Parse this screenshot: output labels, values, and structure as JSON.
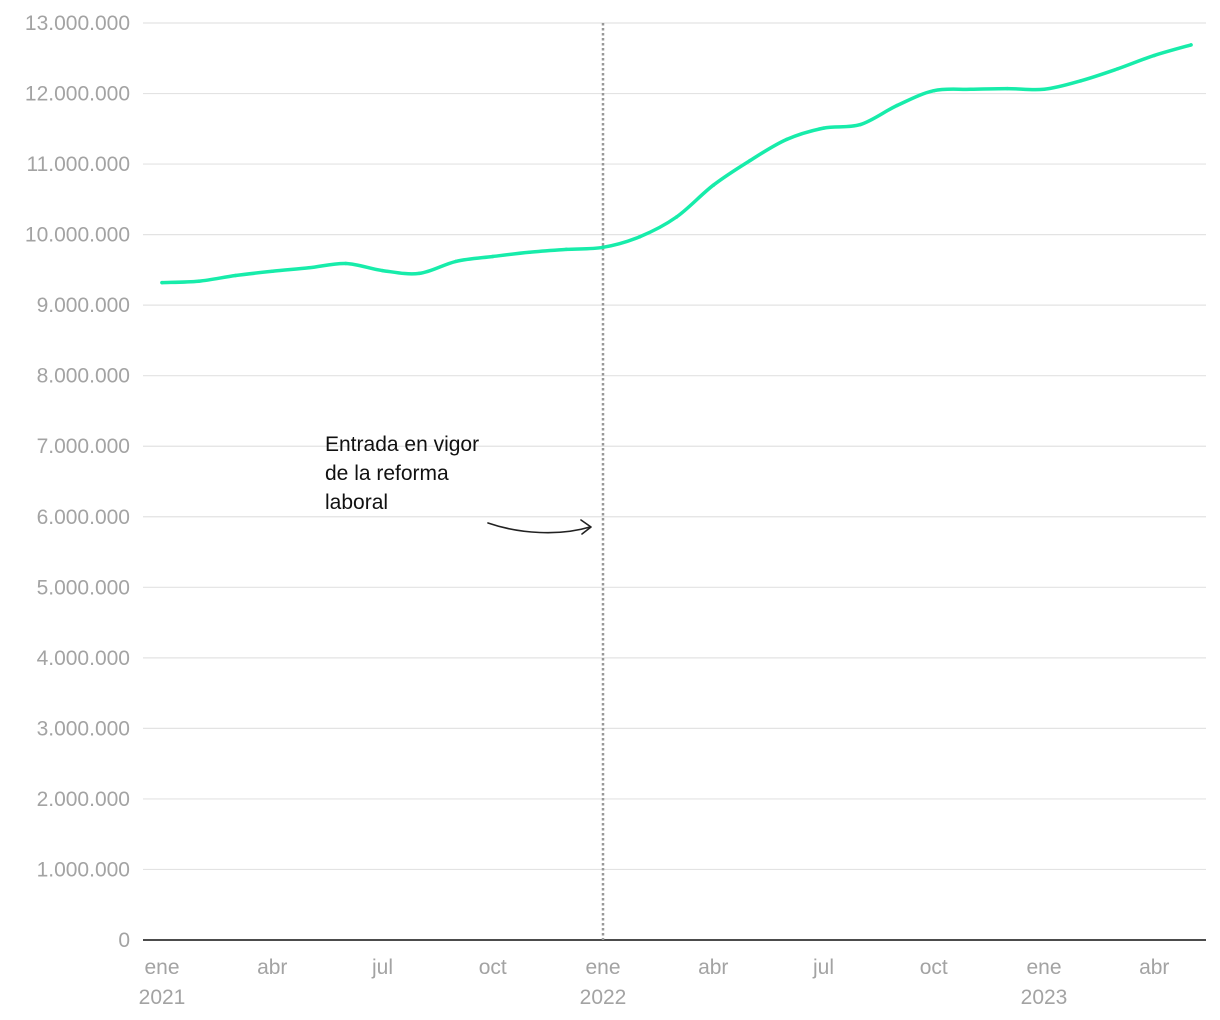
{
  "chart_data": {
    "type": "line",
    "title": "",
    "xlabel": "",
    "ylabel": "",
    "ylim": [
      0,
      13000000
    ],
    "y_ticks": [
      {
        "value": 0,
        "label": "0"
      },
      {
        "value": 1000000,
        "label": "1.000.000"
      },
      {
        "value": 2000000,
        "label": "2.000.000"
      },
      {
        "value": 3000000,
        "label": "3.000.000"
      },
      {
        "value": 4000000,
        "label": "4.000.000"
      },
      {
        "value": 5000000,
        "label": "5.000.000"
      },
      {
        "value": 6000000,
        "label": "6.000.000"
      },
      {
        "value": 7000000,
        "label": "7.000.000"
      },
      {
        "value": 8000000,
        "label": "8.000.000"
      },
      {
        "value": 9000000,
        "label": "9.000.000"
      },
      {
        "value": 10000000,
        "label": "10.000.000"
      },
      {
        "value": 11000000,
        "label": "11.000.000"
      },
      {
        "value": 12000000,
        "label": "12.000.000"
      },
      {
        "value": 13000000,
        "label": "13.000.000"
      }
    ],
    "x_ticks": [
      {
        "date": "2021-01",
        "month": "ene",
        "year": "2021"
      },
      {
        "date": "2021-04",
        "month": "abr",
        "year": ""
      },
      {
        "date": "2021-07",
        "month": "jul",
        "year": ""
      },
      {
        "date": "2021-10",
        "month": "oct",
        "year": ""
      },
      {
        "date": "2022-01",
        "month": "ene",
        "year": "2022"
      },
      {
        "date": "2022-04",
        "month": "abr",
        "year": ""
      },
      {
        "date": "2022-07",
        "month": "jul",
        "year": ""
      },
      {
        "date": "2022-10",
        "month": "oct",
        "year": ""
      },
      {
        "date": "2023-01",
        "month": "ene",
        "year": "2023"
      },
      {
        "date": "2023-04",
        "month": "abr",
        "year": ""
      }
    ],
    "x_range": [
      "2021-01",
      "2023-05"
    ],
    "grid": true,
    "series": [
      {
        "color": "#17ecaa",
        "points": [
          {
            "x": "2021-01",
            "y": 9320000
          },
          {
            "x": "2021-02",
            "y": 9340000
          },
          {
            "x": "2021-03",
            "y": 9420000
          },
          {
            "x": "2021-04",
            "y": 9480000
          },
          {
            "x": "2021-05",
            "y": 9530000
          },
          {
            "x": "2021-06",
            "y": 9590000
          },
          {
            "x": "2021-07",
            "y": 9490000
          },
          {
            "x": "2021-08",
            "y": 9450000
          },
          {
            "x": "2021-09",
            "y": 9620000
          },
          {
            "x": "2021-10",
            "y": 9690000
          },
          {
            "x": "2021-11",
            "y": 9750000
          },
          {
            "x": "2021-12",
            "y": 9790000
          },
          {
            "x": "2022-01",
            "y": 9820000
          },
          {
            "x": "2022-02",
            "y": 9970000
          },
          {
            "x": "2022-03",
            "y": 10250000
          },
          {
            "x": "2022-04",
            "y": 10700000
          },
          {
            "x": "2022-05",
            "y": 11050000
          },
          {
            "x": "2022-06",
            "y": 11350000
          },
          {
            "x": "2022-07",
            "y": 11510000
          },
          {
            "x": "2022-08",
            "y": 11560000
          },
          {
            "x": "2022-09",
            "y": 11830000
          },
          {
            "x": "2022-10",
            "y": 12040000
          },
          {
            "x": "2022-11",
            "y": 12060000
          },
          {
            "x": "2022-12",
            "y": 12070000
          },
          {
            "x": "2023-01",
            "y": 12060000
          },
          {
            "x": "2023-02",
            "y": 12180000
          },
          {
            "x": "2023-03",
            "y": 12350000
          },
          {
            "x": "2023-04",
            "y": 12540000
          },
          {
            "x": "2023-05",
            "y": 12690000
          }
        ]
      }
    ],
    "annotations": [
      {
        "x": "2022-01",
        "style": "dotted-vertical-line",
        "color": "#999999",
        "lines": [
          "Entrada en vigor",
          "de la reforma",
          "laboral"
        ]
      }
    ]
  }
}
